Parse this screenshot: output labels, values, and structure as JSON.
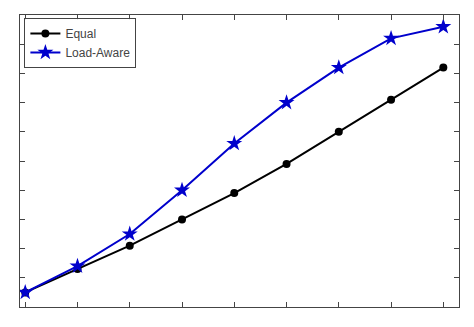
{
  "chart_data": {
    "type": "line",
    "x": [
      0,
      1,
      2,
      3,
      4,
      5,
      6,
      7,
      8
    ],
    "series": [
      {
        "name": "Equal",
        "color": "#000000",
        "marker": "circle",
        "values": [
          0.05,
          0.13,
          0.21,
          0.3,
          0.39,
          0.49,
          0.6,
          0.71,
          0.82
        ]
      },
      {
        "name": "Load-Aware",
        "color": "#0000cc",
        "marker": "star",
        "values": [
          0.05,
          0.14,
          0.25,
          0.4,
          0.56,
          0.7,
          0.82,
          0.92,
          0.96
        ]
      }
    ],
    "xlim": [
      -0.1,
      8.3
    ],
    "ylim": [
      0.0,
      1.0
    ],
    "xticks": [
      0,
      1,
      2,
      3,
      4,
      5,
      6,
      7,
      8
    ],
    "yticks": [
      0.0,
      0.1,
      0.2,
      0.3,
      0.4,
      0.5,
      0.6,
      0.7,
      0.8,
      0.9,
      1.0
    ],
    "tick_labels": false,
    "grid": false,
    "legend": "upper left"
  }
}
